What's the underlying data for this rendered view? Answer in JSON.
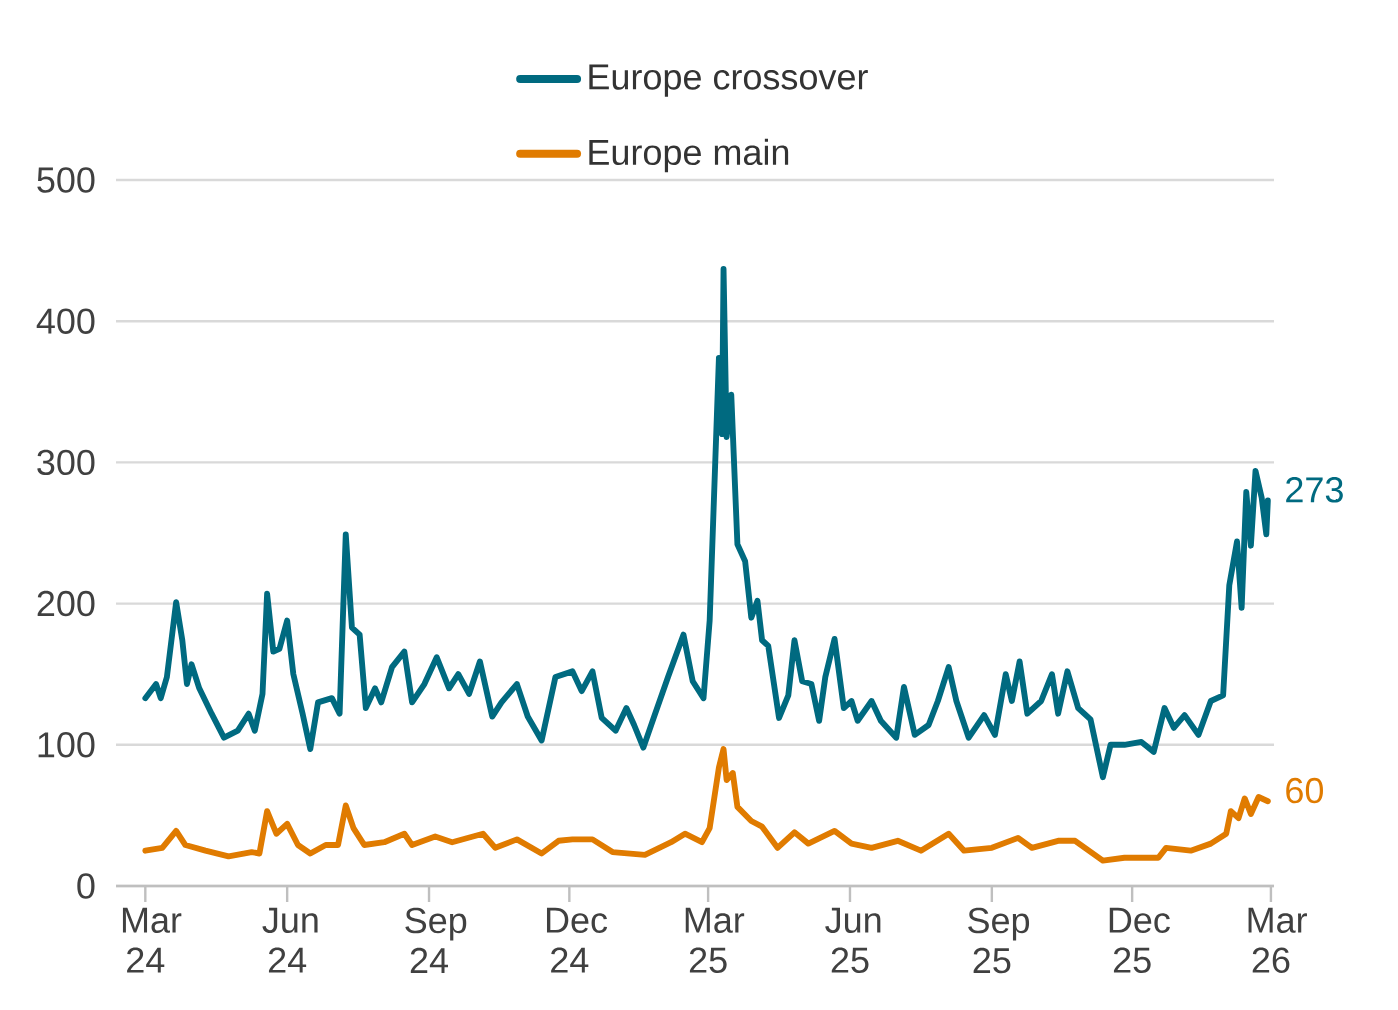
{
  "chart_data": {
    "type": "line",
    "xlim": [
      "2024-02-11",
      "2026-03-03"
    ],
    "ylim": [
      0,
      500
    ],
    "yticks": [
      0,
      100,
      200,
      300,
      400,
      500
    ],
    "xticks": [
      {
        "value": "2024-03-01",
        "label": "Mar 24"
      },
      {
        "value": "2024-06-01",
        "label": "Jun 24"
      },
      {
        "value": "2024-09-01",
        "label": "Sep 24"
      },
      {
        "value": "2024-12-01",
        "label": "Dec 24"
      },
      {
        "value": "2025-03-01",
        "label": "Mar 25"
      },
      {
        "value": "2025-06-01",
        "label": "Jun 25"
      },
      {
        "value": "2025-09-01",
        "label": "Sep 25"
      },
      {
        "value": "2025-12-01",
        "label": "Dec 25"
      },
      {
        "value": "2026-03-01",
        "label": "Mar 26"
      }
    ],
    "grid": "y",
    "legend": "top",
    "line_style": "solid",
    "marker": "none",
    "series": [
      {
        "name": "Europe crossover",
        "color": "#006a80",
        "x": [
          "2024-03-01",
          "2024-03-08",
          "2024-03-11",
          "2024-03-15",
          "2024-03-21",
          "2024-03-25",
          "2024-03-28",
          "2024-03-31",
          "2024-04-05",
          "2024-04-13",
          "2024-04-21",
          "2024-04-30",
          "2024-05-07",
          "2024-05-11",
          "2024-05-16",
          "2024-05-19",
          "2024-05-23",
          "2024-05-27",
          "2024-06-01",
          "2024-06-05",
          "2024-06-11",
          "2024-06-16",
          "2024-06-21",
          "2024-06-30",
          "2024-07-05",
          "2024-07-09",
          "2024-07-13",
          "2024-07-18",
          "2024-07-22",
          "2024-07-28",
          "2024-08-01",
          "2024-08-08",
          "2024-08-16",
          "2024-08-21",
          "2024-08-29",
          "2024-09-06",
          "2024-09-14",
          "2024-09-20",
          "2024-09-27",
          "2024-10-04",
          "2024-10-12",
          "2024-10-18",
          "2024-10-28",
          "2024-11-04",
          "2024-11-13",
          "2024-11-22",
          "2024-12-03",
          "2024-12-09",
          "2024-12-16",
          "2024-12-22",
          "2024-12-31",
          "2025-01-07",
          "2025-01-12",
          "2025-01-18",
          "2025-01-25",
          "2025-02-03",
          "2025-02-13",
          "2025-02-19",
          "2025-02-26",
          "2025-03-02",
          "2025-03-08",
          "2025-03-10",
          "2025-03-11",
          "2025-03-13",
          "2025-03-16",
          "2025-03-20",
          "2025-03-25",
          "2025-03-29",
          "2025-04-02",
          "2025-04-05",
          "2025-04-09",
          "2025-04-16",
          "2025-04-22",
          "2025-04-26",
          "2025-05-01",
          "2025-05-07",
          "2025-05-12",
          "2025-05-16",
          "2025-05-22",
          "2025-05-28",
          "2025-06-02",
          "2025-06-06",
          "2025-06-15",
          "2025-06-21",
          "2025-07-01",
          "2025-07-06",
          "2025-07-13",
          "2025-07-22",
          "2025-07-28",
          "2025-08-04",
          "2025-08-09",
          "2025-08-17",
          "2025-08-27",
          "2025-09-03",
          "2025-09-10",
          "2025-09-14",
          "2025-09-19",
          "2025-09-24",
          "2025-10-03",
          "2025-10-10",
          "2025-10-14",
          "2025-10-20",
          "2025-10-27",
          "2025-11-04",
          "2025-11-12",
          "2025-11-17",
          "2025-11-26",
          "2025-12-07",
          "2025-12-15",
          "2025-12-22",
          "2025-12-28",
          "2026-01-04",
          "2026-01-13",
          "2026-01-21",
          "2026-01-29",
          "2026-02-02",
          "2026-02-07",
          "2026-02-10",
          "2026-02-13",
          "2026-02-16",
          "2026-02-19",
          "2026-02-23",
          "2026-02-26",
          "2026-02-27"
        ],
        "values": [
          133,
          143,
          133,
          148,
          201,
          174,
          143,
          157,
          140,
          122,
          105,
          110,
          122,
          110,
          136,
          207,
          166,
          168,
          188,
          150,
          122,
          97,
          130,
          133,
          122,
          249,
          183,
          178,
          126,
          140,
          130,
          155,
          166,
          130,
          143,
          162,
          140,
          150,
          136,
          159,
          120,
          130,
          143,
          120,
          103,
          148,
          152,
          138,
          152,
          119,
          110,
          126,
          114,
          98,
          120,
          148,
          178,
          145,
          133,
          188,
          374,
          320,
          437,
          318,
          348,
          242,
          230,
          190,
          202,
          174,
          170,
          119,
          135,
          174,
          145,
          143,
          117,
          148,
          175,
          126,
          131,
          117,
          131,
          117,
          105,
          141,
          107,
          114,
          131,
          155,
          131,
          105,
          121,
          107,
          150,
          131,
          159,
          122,
          131,
          150,
          122,
          152,
          126,
          118,
          77,
          100,
          100,
          102,
          95,
          126,
          112,
          121,
          107,
          131,
          135,
          213,
          244,
          197,
          279,
          241,
          294,
          275,
          249,
          273
        ]
      },
      {
        "name": "Europe main",
        "color": "#e07b00",
        "x": [
          "2024-03-01",
          "2024-03-12",
          "2024-03-21",
          "2024-03-27",
          "2024-04-09",
          "2024-04-24",
          "2024-05-09",
          "2024-05-14",
          "2024-05-19",
          "2024-05-25",
          "2024-06-01",
          "2024-06-08",
          "2024-06-16",
          "2024-06-26",
          "2024-07-04",
          "2024-07-09",
          "2024-07-14",
          "2024-07-21",
          "2024-08-03",
          "2024-08-16",
          "2024-08-21",
          "2024-09-05",
          "2024-09-16",
          "2024-10-06",
          "2024-10-14",
          "2024-10-28",
          "2024-11-13",
          "2024-11-24",
          "2024-12-03",
          "2024-12-16",
          "2024-12-29",
          "2025-01-19",
          "2025-02-05",
          "2025-02-14",
          "2025-02-25",
          "2025-03-02",
          "2025-03-08",
          "2025-03-11",
          "2025-03-13",
          "2025-03-17",
          "2025-03-20",
          "2025-03-29",
          "2025-04-05",
          "2025-04-15",
          "2025-04-26",
          "2025-05-05",
          "2025-05-22",
          "2025-06-02",
          "2025-06-15",
          "2025-07-02",
          "2025-07-17",
          "2025-08-04",
          "2025-08-14",
          "2025-09-01",
          "2025-09-18",
          "2025-09-27",
          "2025-10-14",
          "2025-10-25",
          "2025-11-12",
          "2025-11-26",
          "2025-12-18",
          "2025-12-23",
          "2026-01-08",
          "2026-01-21",
          "2026-01-31",
          "2026-02-03",
          "2026-02-08",
          "2026-02-12",
          "2026-02-16",
          "2026-02-21",
          "2026-02-27"
        ],
        "values": [
          25,
          27,
          39,
          29,
          25,
          21,
          24,
          23,
          53,
          37,
          44,
          29,
          23,
          29,
          29,
          57,
          41,
          29,
          31,
          37,
          29,
          35,
          31,
          37,
          27,
          33,
          23,
          32,
          33,
          33,
          24,
          22,
          31,
          37,
          31,
          41,
          84,
          97,
          75,
          80,
          56,
          46,
          42,
          27,
          38,
          30,
          39,
          30,
          27,
          32,
          25,
          37,
          25,
          27,
          34,
          27,
          32,
          32,
          18,
          20,
          20,
          27,
          25,
          30,
          37,
          53,
          48,
          62,
          51,
          63,
          60
        ]
      }
    ],
    "annotations": [
      {
        "text": "273",
        "x": "2026-02-27",
        "y": 273
      },
      {
        "text": "60",
        "x": "2026-02-27",
        "y": 60
      }
    ]
  }
}
